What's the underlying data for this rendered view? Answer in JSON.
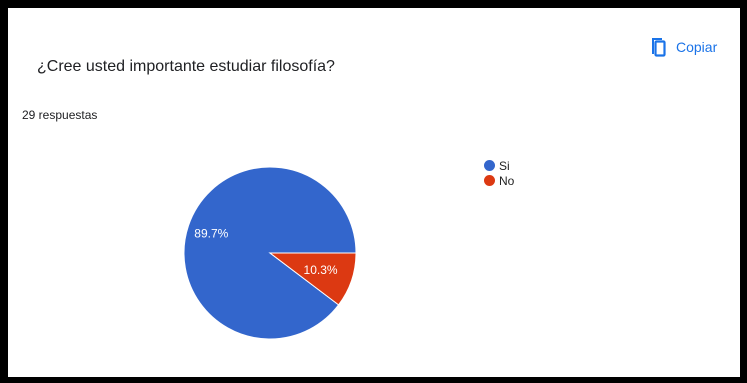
{
  "question": {
    "title": "¿Cree usted importante estudiar filosofía?",
    "responses": "29 respuestas"
  },
  "copy_button": {
    "label": "Copiar",
    "icon": "copy-icon",
    "color": "#1a73e8"
  },
  "chart_data": {
    "type": "pie",
    "legend_position": "right",
    "slices": [
      {
        "label": "Si",
        "value": 89.7,
        "display": "89.7%",
        "color": "#3366cc"
      },
      {
        "label": "No",
        "value": 10.3,
        "display": "10.3%",
        "color": "#dc3912"
      }
    ]
  }
}
